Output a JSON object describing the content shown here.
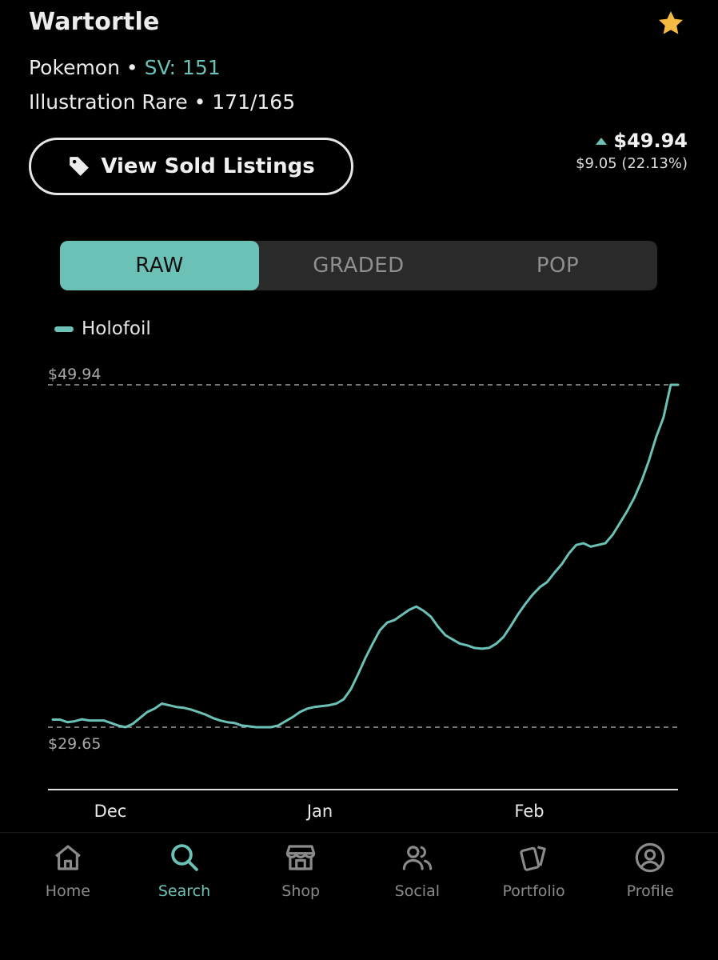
{
  "card": {
    "name": "Wartortle",
    "category": "Pokemon",
    "set_code": "SV: 151",
    "rarity_line": "Illustration Rare • 171/165"
  },
  "actions": {
    "view_sold_label": "View Sold Listings"
  },
  "price": {
    "current": "$49.94",
    "change": "$9.05 (22.13%)"
  },
  "tabs": [
    {
      "label": "RAW",
      "active": true
    },
    {
      "label": "GRADED",
      "active": false
    },
    {
      "label": "POP",
      "active": false
    }
  ],
  "colors": {
    "accent": "#6cc1b7",
    "star": "#f4b942"
  },
  "chart_data": {
    "type": "line",
    "series": [
      {
        "name": "Holofoil",
        "values": [
          30.1,
          30.1,
          29.95,
          30.0,
          30.12,
          30.05,
          30.05,
          30.05,
          29.9,
          29.75,
          29.65,
          29.85,
          30.2,
          30.55,
          30.75,
          31.05,
          30.95,
          30.85,
          30.8,
          30.7,
          30.55,
          30.4,
          30.2,
          30.05,
          29.95,
          29.9,
          29.75,
          29.7,
          29.65,
          29.65,
          29.65,
          29.75,
          30.0,
          30.25,
          30.55,
          30.75,
          30.85,
          30.9,
          30.95,
          31.05,
          31.3,
          31.9,
          32.8,
          33.75,
          34.6,
          35.4,
          35.85,
          36.0,
          36.3,
          36.6,
          36.8,
          36.55,
          36.2,
          35.6,
          35.1,
          34.85,
          34.6,
          34.5,
          34.35,
          34.3,
          34.35,
          34.6,
          35.0,
          35.65,
          36.35,
          36.95,
          37.5,
          37.95,
          38.25,
          38.8,
          39.3,
          39.95,
          40.45,
          40.55,
          40.35,
          40.45,
          40.55,
          41.05,
          41.75,
          42.45,
          43.25,
          44.25,
          45.45,
          46.85,
          48.0,
          49.94,
          49.94
        ]
      }
    ],
    "x_ticks": [
      "Dec",
      "Jan",
      "Feb"
    ],
    "reference_lines": [
      {
        "label": "$49.94",
        "value": 49.94
      },
      {
        "label": "$29.65",
        "value": 29.65
      }
    ],
    "ylim": [
      29.65,
      49.94
    ],
    "legend_position": "top-left",
    "grid": false
  },
  "nav": {
    "items": [
      {
        "label": "Home",
        "icon": "home-icon",
        "active": false
      },
      {
        "label": "Search",
        "icon": "search-icon",
        "active": true
      },
      {
        "label": "Shop",
        "icon": "shop-icon",
        "active": false
      },
      {
        "label": "Social",
        "icon": "social-icon",
        "active": false
      },
      {
        "label": "Portfolio",
        "icon": "cards-icon",
        "active": false
      },
      {
        "label": "Profile",
        "icon": "profile-icon",
        "active": false
      }
    ]
  }
}
